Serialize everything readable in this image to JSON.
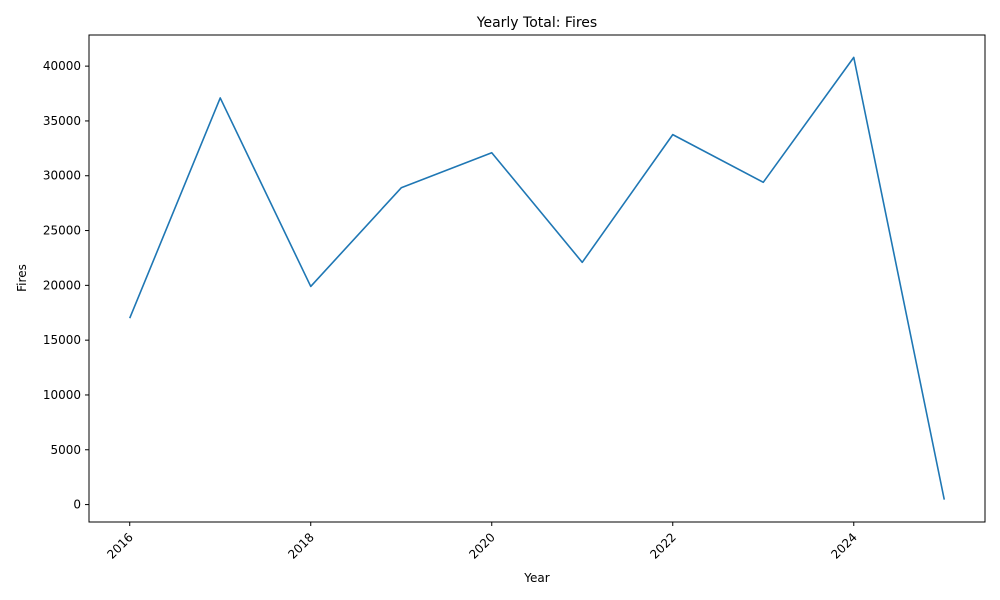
{
  "chart_data": {
    "type": "line",
    "title": "Yearly Total: Fires",
    "xlabel": "Year",
    "ylabel": "Fires",
    "x": [
      2016,
      2017,
      2018,
      2019,
      2020,
      2021,
      2022,
      2023,
      2024,
      2025
    ],
    "series": [
      {
        "values": [
          17000,
          37100,
          19900,
          28900,
          32100,
          22100,
          33750,
          29400,
          40800,
          450
        ]
      }
    ],
    "xlim": [
      2015.55,
      2025.45
    ],
    "ylim": [
      -1590,
      42840
    ],
    "xticks": [
      2016,
      2018,
      2020,
      2022,
      2024
    ],
    "yticks": [
      0,
      5000,
      10000,
      15000,
      20000,
      25000,
      30000,
      35000,
      40000
    ],
    "grid": false,
    "line_color": "#1f77b4"
  }
}
